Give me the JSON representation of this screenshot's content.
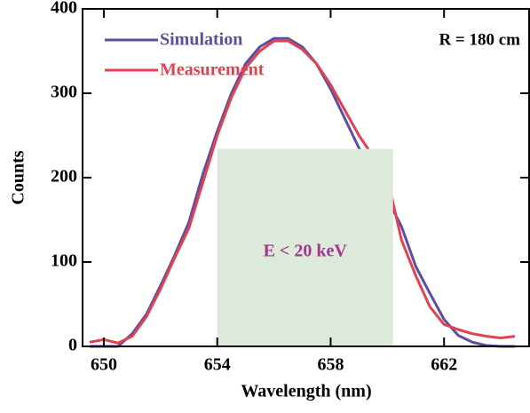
{
  "chart_data": {
    "type": "line",
    "xlabel": "Wavelength (nm)",
    "ylabel": "Counts",
    "annotation": "R = 180 cm",
    "x": [
      649.5,
      650,
      650.5,
      651,
      651.5,
      652,
      652.5,
      653,
      653.5,
      654,
      654.5,
      655,
      655.5,
      656,
      656.5,
      657,
      657.5,
      658,
      658.5,
      659,
      659.5,
      660,
      660.5,
      661,
      661.5,
      662,
      662.5,
      663,
      663.5,
      664,
      664.5
    ],
    "series": [
      {
        "name": "Simulation",
        "color": "#5b4ea3",
        "values": [
          0,
          0,
          0,
          15,
          38,
          72,
          108,
          147,
          205,
          255,
          300,
          335,
          355,
          365,
          365,
          355,
          335,
          305,
          270,
          235,
          205,
          175,
          142,
          95,
          63,
          32,
          13,
          5,
          1,
          0,
          0
        ]
      },
      {
        "name": "Measurement",
        "color": "#e0434f",
        "values": [
          5,
          8,
          4,
          12,
          35,
          68,
          105,
          140,
          195,
          250,
          295,
          330,
          350,
          362,
          362,
          352,
          335,
          310,
          280,
          250,
          225,
          200,
          126,
          84,
          47,
          26,
          20,
          15,
          12,
          10,
          12
        ]
      }
    ],
    "shaded_region": {
      "x": [
        654,
        660.2
      ],
      "y": [
        0,
        234
      ],
      "color": "#dde9da",
      "label": "E < 20 keV"
    },
    "xlim": [
      649.25,
      665
    ],
    "ylim": [
      0,
      400
    ],
    "xticks": [
      650,
      654,
      658,
      662
    ],
    "yticks": [
      0,
      100,
      200,
      300,
      400
    ],
    "legend": "upper left"
  }
}
